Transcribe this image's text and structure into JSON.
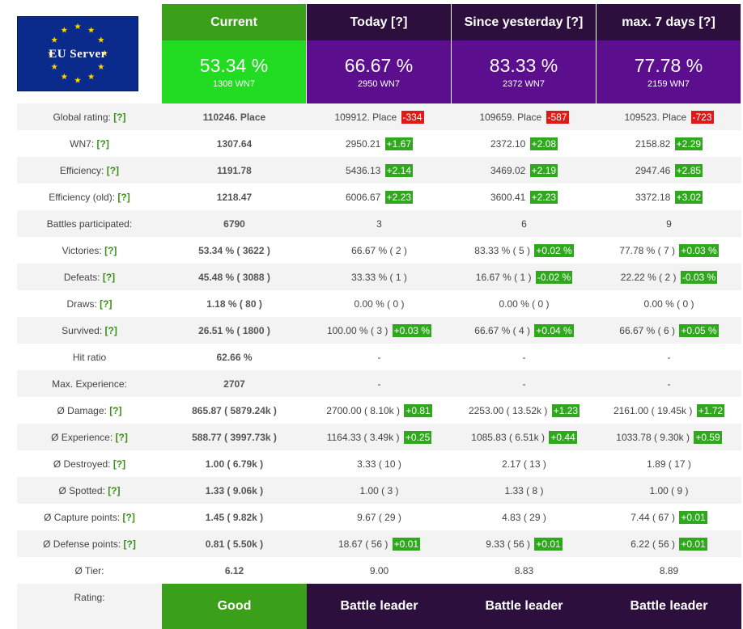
{
  "logo": {
    "text": "EU Server"
  },
  "columns": [
    {
      "title": "Current",
      "pct": "53.34 %",
      "sub": "1308 WN7"
    },
    {
      "title": "Today [?]",
      "pct": "66.67 %",
      "sub": "2950 WN7"
    },
    {
      "title": "Since yesterday [?]",
      "pct": "83.33 %",
      "sub": "2372 WN7"
    },
    {
      "title": "max. 7 days [?]",
      "pct": "77.78 %",
      "sub": "2159 WN7"
    }
  ],
  "rows": [
    {
      "label": "Global rating:",
      "help": "[?]",
      "cells": [
        {
          "v": "110246. Place"
        },
        {
          "v": "109912. Place",
          "d": "-334",
          "dir": "dn"
        },
        {
          "v": "109659. Place",
          "d": "-587",
          "dir": "dn"
        },
        {
          "v": "109523. Place",
          "d": "-723",
          "dir": "dn"
        }
      ]
    },
    {
      "label": "WN7:",
      "help": "[?]",
      "cells": [
        {
          "v": "1307.64"
        },
        {
          "v": "2950.21",
          "d": "+1.67",
          "dir": "up"
        },
        {
          "v": "2372.10",
          "d": "+2.08",
          "dir": "up"
        },
        {
          "v": "2158.82",
          "d": "+2.29",
          "dir": "up"
        }
      ]
    },
    {
      "label": "Efficiency:",
      "help": "[?]",
      "cells": [
        {
          "v": "1191.78"
        },
        {
          "v": "5436.13",
          "d": "+2.14",
          "dir": "up"
        },
        {
          "v": "3469.02",
          "d": "+2.19",
          "dir": "up"
        },
        {
          "v": "2947.46",
          "d": "+2.85",
          "dir": "up"
        }
      ]
    },
    {
      "label": "Efficiency (old):",
      "help": "[?]",
      "cells": [
        {
          "v": "1218.47"
        },
        {
          "v": "6006.67",
          "d": "+2.23",
          "dir": "up"
        },
        {
          "v": "3600.41",
          "d": "+2.23",
          "dir": "up"
        },
        {
          "v": "3372.18",
          "d": "+3.02",
          "dir": "up"
        }
      ]
    },
    {
      "label": "Battles participated:",
      "help": "",
      "cells": [
        {
          "v": "6790"
        },
        {
          "v": "3"
        },
        {
          "v": "6"
        },
        {
          "v": "9"
        }
      ]
    },
    {
      "label": "Victories:",
      "help": "[?]",
      "cells": [
        {
          "v": "53.34 % ( 3622 )"
        },
        {
          "v": "66.67 % ( 2 )"
        },
        {
          "v": "83.33 % ( 5 )",
          "d": "+0.02 %",
          "dir": "up"
        },
        {
          "v": "77.78 % ( 7 )",
          "d": "+0.03 %",
          "dir": "up"
        }
      ]
    },
    {
      "label": "Defeats:",
      "help": "[?]",
      "cells": [
        {
          "v": "45.48 % ( 3088 )"
        },
        {
          "v": "33.33 % ( 1 )"
        },
        {
          "v": "16.67 % ( 1 )",
          "d": "-0.02 %",
          "dir": "up"
        },
        {
          "v": "22.22 % ( 2 )",
          "d": "-0.03 %",
          "dir": "up"
        }
      ]
    },
    {
      "label": "Draws:",
      "help": "[?]",
      "cells": [
        {
          "v": "1.18 % ( 80 )"
        },
        {
          "v": "0.00 % ( 0 )"
        },
        {
          "v": "0.00 % ( 0 )"
        },
        {
          "v": "0.00 % ( 0 )"
        }
      ]
    },
    {
      "label": "Survived:",
      "help": "[?]",
      "cells": [
        {
          "v": "26.51 % ( 1800 )"
        },
        {
          "v": "100.00 % ( 3 )",
          "d": "+0.03 %",
          "dir": "up"
        },
        {
          "v": "66.67 % ( 4 )",
          "d": "+0.04 %",
          "dir": "up"
        },
        {
          "v": "66.67 % ( 6 )",
          "d": "+0.05 %",
          "dir": "up"
        }
      ]
    },
    {
      "label": "Hit ratio",
      "help": "",
      "cells": [
        {
          "v": "62.66 %"
        },
        {
          "v": "-"
        },
        {
          "v": "-"
        },
        {
          "v": "-"
        }
      ]
    },
    {
      "label": "Max. Experience:",
      "help": "",
      "cells": [
        {
          "v": "2707"
        },
        {
          "v": "-"
        },
        {
          "v": "-"
        },
        {
          "v": "-"
        }
      ]
    },
    {
      "label": "Ø Damage:",
      "help": "[?]",
      "cells": [
        {
          "v": "865.87 ( 5879.24k )"
        },
        {
          "v": "2700.00 ( 8.10k )",
          "d": "+0.81",
          "dir": "up"
        },
        {
          "v": "2253.00 ( 13.52k )",
          "d": "+1.23",
          "dir": "up"
        },
        {
          "v": "2161.00 ( 19.45k )",
          "d": "+1.72",
          "dir": "up"
        }
      ]
    },
    {
      "label": "Ø Experience:",
      "help": "[?]",
      "cells": [
        {
          "v": "588.77 ( 3997.73k )"
        },
        {
          "v": "1164.33 ( 3.49k )",
          "d": "+0.25",
          "dir": "up"
        },
        {
          "v": "1085.83 ( 6.51k )",
          "d": "+0.44",
          "dir": "up"
        },
        {
          "v": "1033.78 ( 9.30k )",
          "d": "+0.59",
          "dir": "up"
        }
      ]
    },
    {
      "label": "Ø Destroyed:",
      "help": "[?]",
      "cells": [
        {
          "v": "1.00 ( 6.79k )"
        },
        {
          "v": "3.33 ( 10 )"
        },
        {
          "v": "2.17 ( 13 )"
        },
        {
          "v": "1.89 ( 17 )"
        }
      ]
    },
    {
      "label": "Ø Spotted:",
      "help": "[?]",
      "cells": [
        {
          "v": "1.33 ( 9.06k )"
        },
        {
          "v": "1.00 ( 3 )"
        },
        {
          "v": "1.33 ( 8 )"
        },
        {
          "v": "1.00 ( 9 )"
        }
      ]
    },
    {
      "label": "Ø Capture points:",
      "help": "[?]",
      "cells": [
        {
          "v": "1.45 ( 9.82k )"
        },
        {
          "v": "9.67 ( 29 )"
        },
        {
          "v": "4.83 ( 29 )"
        },
        {
          "v": "7.44 ( 67 )",
          "d": "+0.01",
          "dir": "up"
        }
      ]
    },
    {
      "label": "Ø Defense points:",
      "help": "[?]",
      "cells": [
        {
          "v": "0.81 ( 5.50k )"
        },
        {
          "v": "18.67 ( 56 )",
          "d": "+0.01",
          "dir": "up"
        },
        {
          "v": "9.33 ( 56 )",
          "d": "+0.01",
          "dir": "up"
        },
        {
          "v": "6.22 ( 56 )",
          "d": "+0.01",
          "dir": "up"
        }
      ]
    },
    {
      "label": "Ø Tier:",
      "help": "",
      "cells": [
        {
          "v": "6.12"
        },
        {
          "v": "9.00"
        },
        {
          "v": "8.83"
        },
        {
          "v": "8.89"
        }
      ]
    }
  ],
  "rating": {
    "label": "Rating:",
    "values": [
      "Good",
      "Battle leader",
      "Battle leader",
      "Battle leader"
    ]
  },
  "colors": {
    "green_header": "#3aa019",
    "green_bright": "#21dc21",
    "purple_dark": "#2c0f3d",
    "purple": "#5b0f8f",
    "delta_up": "#2fa81d",
    "delta_down": "#e01818",
    "help_link": "#3a8f1a"
  }
}
